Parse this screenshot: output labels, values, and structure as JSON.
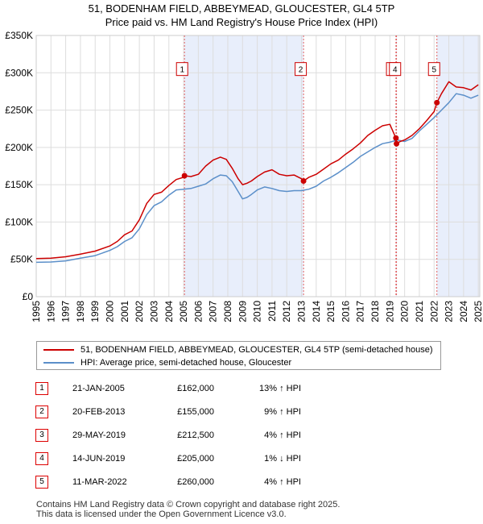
{
  "chart_data": {
    "type": "line",
    "title": "51, BODENHAM FIELD, ABBEYMEAD, GLOUCESTER, GL4 5TP",
    "subtitle": "Price paid vs. HM Land Registry's House Price Index (HPI)",
    "xlabel": "",
    "ylabel": "",
    "xlim": [
      1995,
      2025.1
    ],
    "ylim": [
      0,
      350000
    ],
    "y_ticks": [
      0,
      50000,
      100000,
      150000,
      200000,
      250000,
      300000,
      350000
    ],
    "y_tick_labels": [
      "£0",
      "£50K",
      "£100K",
      "£150K",
      "£200K",
      "£250K",
      "£300K",
      "£350K"
    ],
    "x_ticks": [
      1995,
      1996,
      1997,
      1998,
      1999,
      2000,
      2001,
      2002,
      2003,
      2004,
      2005,
      2006,
      2007,
      2008,
      2009,
      2010,
      2011,
      2012,
      2013,
      2014,
      2015,
      2016,
      2017,
      2018,
      2019,
      2020,
      2021,
      2022,
      2023,
      2024,
      2025
    ],
    "x_tick_labels": [
      "1995",
      "1996",
      "1997",
      "1998",
      "1999",
      "2000",
      "2001",
      "2002",
      "2003",
      "2004",
      "2005",
      "2006",
      "2007",
      "2008",
      "2009",
      "2010",
      "2011",
      "2012",
      "2013",
      "2014",
      "2015",
      "2016",
      "2017",
      "2018",
      "2019",
      "2020",
      "2021",
      "2022",
      "2023",
      "2024",
      "2025"
    ],
    "grid": true,
    "series": [
      {
        "name": "51, BODENHAM FIELD, ABBEYMEAD, GLOUCESTER, GL4 5TP (semi-detached house)",
        "color": "#cc0000",
        "x": [
          1995.0,
          1996.0,
          1997.0,
          1998.0,
          1999.0,
          2000.0,
          2000.5,
          2001.0,
          2001.5,
          2002.0,
          2002.5,
          2003.0,
          2003.5,
          2004.0,
          2004.5,
          2005.0,
          2005.06,
          2005.5,
          2006.0,
          2006.5,
          2007.0,
          2007.5,
          2007.9,
          2008.3,
          2008.7,
          2009.0,
          2009.3,
          2009.6,
          2010.0,
          2010.5,
          2011.0,
          2011.5,
          2012.0,
          2012.5,
          2013.0,
          2013.14,
          2013.5,
          2014.0,
          2014.5,
          2015.0,
          2015.5,
          2016.0,
          2016.5,
          2017.0,
          2017.5,
          2018.0,
          2018.5,
          2019.0,
          2019.41,
          2019.45,
          2019.7,
          2020.0,
          2020.5,
          2021.0,
          2021.5,
          2022.0,
          2022.19,
          2022.5,
          2023.0,
          2023.5,
          2024.0,
          2024.5,
          2025.0
        ],
        "y": [
          51000,
          51500,
          53500,
          57000,
          61000,
          68000,
          74000,
          83000,
          88000,
          103000,
          125000,
          137000,
          140000,
          149000,
          157000,
          160000,
          162000,
          161000,
          164000,
          175000,
          183000,
          187000,
          184000,
          172000,
          158000,
          150000,
          152000,
          155000,
          161000,
          167000,
          170000,
          164000,
          162000,
          163000,
          158000,
          155000,
          160000,
          164000,
          171000,
          178000,
          183000,
          191000,
          198000,
          206000,
          216000,
          223000,
          229000,
          231000,
          212500,
          205000,
          208000,
          210000,
          216000,
          225000,
          236000,
          248000,
          260000,
          272000,
          288000,
          281000,
          280000,
          277000,
          284000
        ]
      },
      {
        "name": "HPI: Average price, semi-detached house, Gloucester",
        "color": "#5b8fc9",
        "x": [
          1995.0,
          1996.0,
          1997.0,
          1998.0,
          1999.0,
          2000.0,
          2000.5,
          2001.0,
          2001.5,
          2002.0,
          2002.5,
          2003.0,
          2003.5,
          2004.0,
          2004.5,
          2005.0,
          2005.5,
          2006.0,
          2006.5,
          2007.0,
          2007.5,
          2007.9,
          2008.3,
          2008.7,
          2009.0,
          2009.3,
          2009.6,
          2010.0,
          2010.5,
          2011.0,
          2011.5,
          2012.0,
          2012.5,
          2013.0,
          2013.5,
          2014.0,
          2014.5,
          2015.0,
          2015.5,
          2016.0,
          2016.5,
          2017.0,
          2017.5,
          2018.0,
          2018.5,
          2019.0,
          2019.5,
          2020.0,
          2020.5,
          2021.0,
          2021.5,
          2022.0,
          2022.5,
          2023.0,
          2023.5,
          2024.0,
          2024.5,
          2025.0
        ],
        "y": [
          46000,
          46500,
          48000,
          51500,
          55000,
          62000,
          67000,
          74000,
          79000,
          91000,
          110000,
          122000,
          127000,
          136000,
          143000,
          144000,
          145000,
          148000,
          151000,
          158000,
          163000,
          162000,
          154000,
          141000,
          131000,
          133000,
          137000,
          143000,
          147000,
          145000,
          142000,
          141000,
          142000,
          142000,
          144000,
          148000,
          155000,
          160000,
          166000,
          173000,
          180000,
          188000,
          194000,
          200000,
          205000,
          207000,
          210000,
          208000,
          212000,
          222000,
          231000,
          240000,
          250000,
          260000,
          272000,
          270000,
          266000,
          270000
        ]
      }
    ],
    "sales": [
      {
        "label": "1",
        "x": 2005.06,
        "date": "21-JAN-2005",
        "price": 162000,
        "price_text": "£162,000",
        "hpi_text": "13% ↑ HPI",
        "box_x": 2004.9,
        "box_y": 305000
      },
      {
        "label": "2",
        "x": 2013.14,
        "date": "20-FEB-2013",
        "price": 155000,
        "price_text": "£155,000",
        "hpi_text": "9% ↑ HPI",
        "box_x": 2012.95,
        "box_y": 305000
      },
      {
        "label": "3",
        "x": 2019.41,
        "date": "29-MAY-2019",
        "price": 212500,
        "price_text": "£212,500",
        "hpi_text": "4% ↑ HPI",
        "box_x": 2019.15,
        "box_y": 305000
      },
      {
        "label": "4",
        "x": 2019.45,
        "date": "14-JUN-2019",
        "price": 205000,
        "price_text": "£205,000",
        "hpi_text": "1% ↓ HPI",
        "box_x": 2019.35,
        "box_y": 305000
      },
      {
        "label": "5",
        "x": 2022.19,
        "date": "11-MAR-2022",
        "price": 260000,
        "price_text": "£260,000",
        "hpi_text": "4% ↑ HPI",
        "box_x": 2022.0,
        "box_y": 305000
      }
    ],
    "shaded_ranges": [
      [
        2005.06,
        2013.14
      ],
      [
        2019.41,
        2019.45
      ],
      [
        2022.19,
        2025.1
      ]
    ]
  },
  "legend": {
    "property_label": "51, BODENHAM FIELD, ABBEYMEAD, GLOUCESTER, GL4 5TP (semi-detached house)",
    "hpi_label": "HPI: Average price, semi-detached house, Gloucester"
  },
  "footer": {
    "line1": "Contains HM Land Registry data © Crown copyright and database right 2025.",
    "line2": "This data is licensed under the Open Government Licence v3.0."
  },
  "colors": {
    "property": "#cc0000",
    "hpi": "#5b8fc9",
    "shade": "#e8eefb",
    "grid": "#dddddd"
  }
}
